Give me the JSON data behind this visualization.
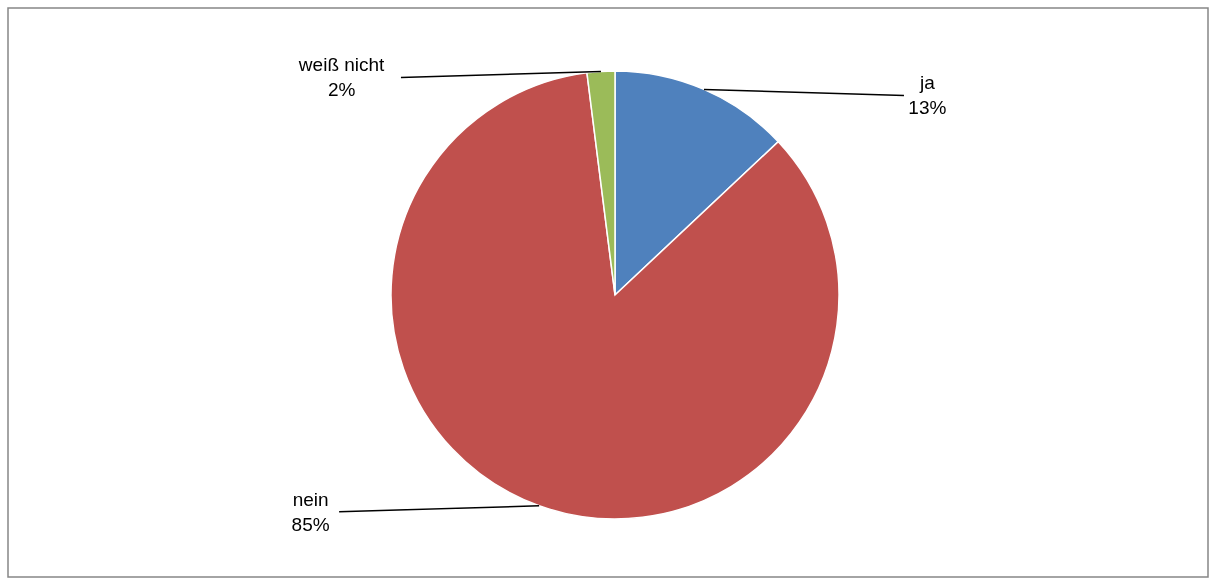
{
  "chart_data": {
    "type": "pie",
    "categories": [
      "ja",
      "nein",
      "weiß nicht"
    ],
    "values": [
      13,
      85,
      2
    ],
    "colors": [
      "#4f81bd",
      "#c0504d",
      "#9bbb59"
    ],
    "value_labels": [
      "13%",
      "85%",
      "2%"
    ]
  }
}
